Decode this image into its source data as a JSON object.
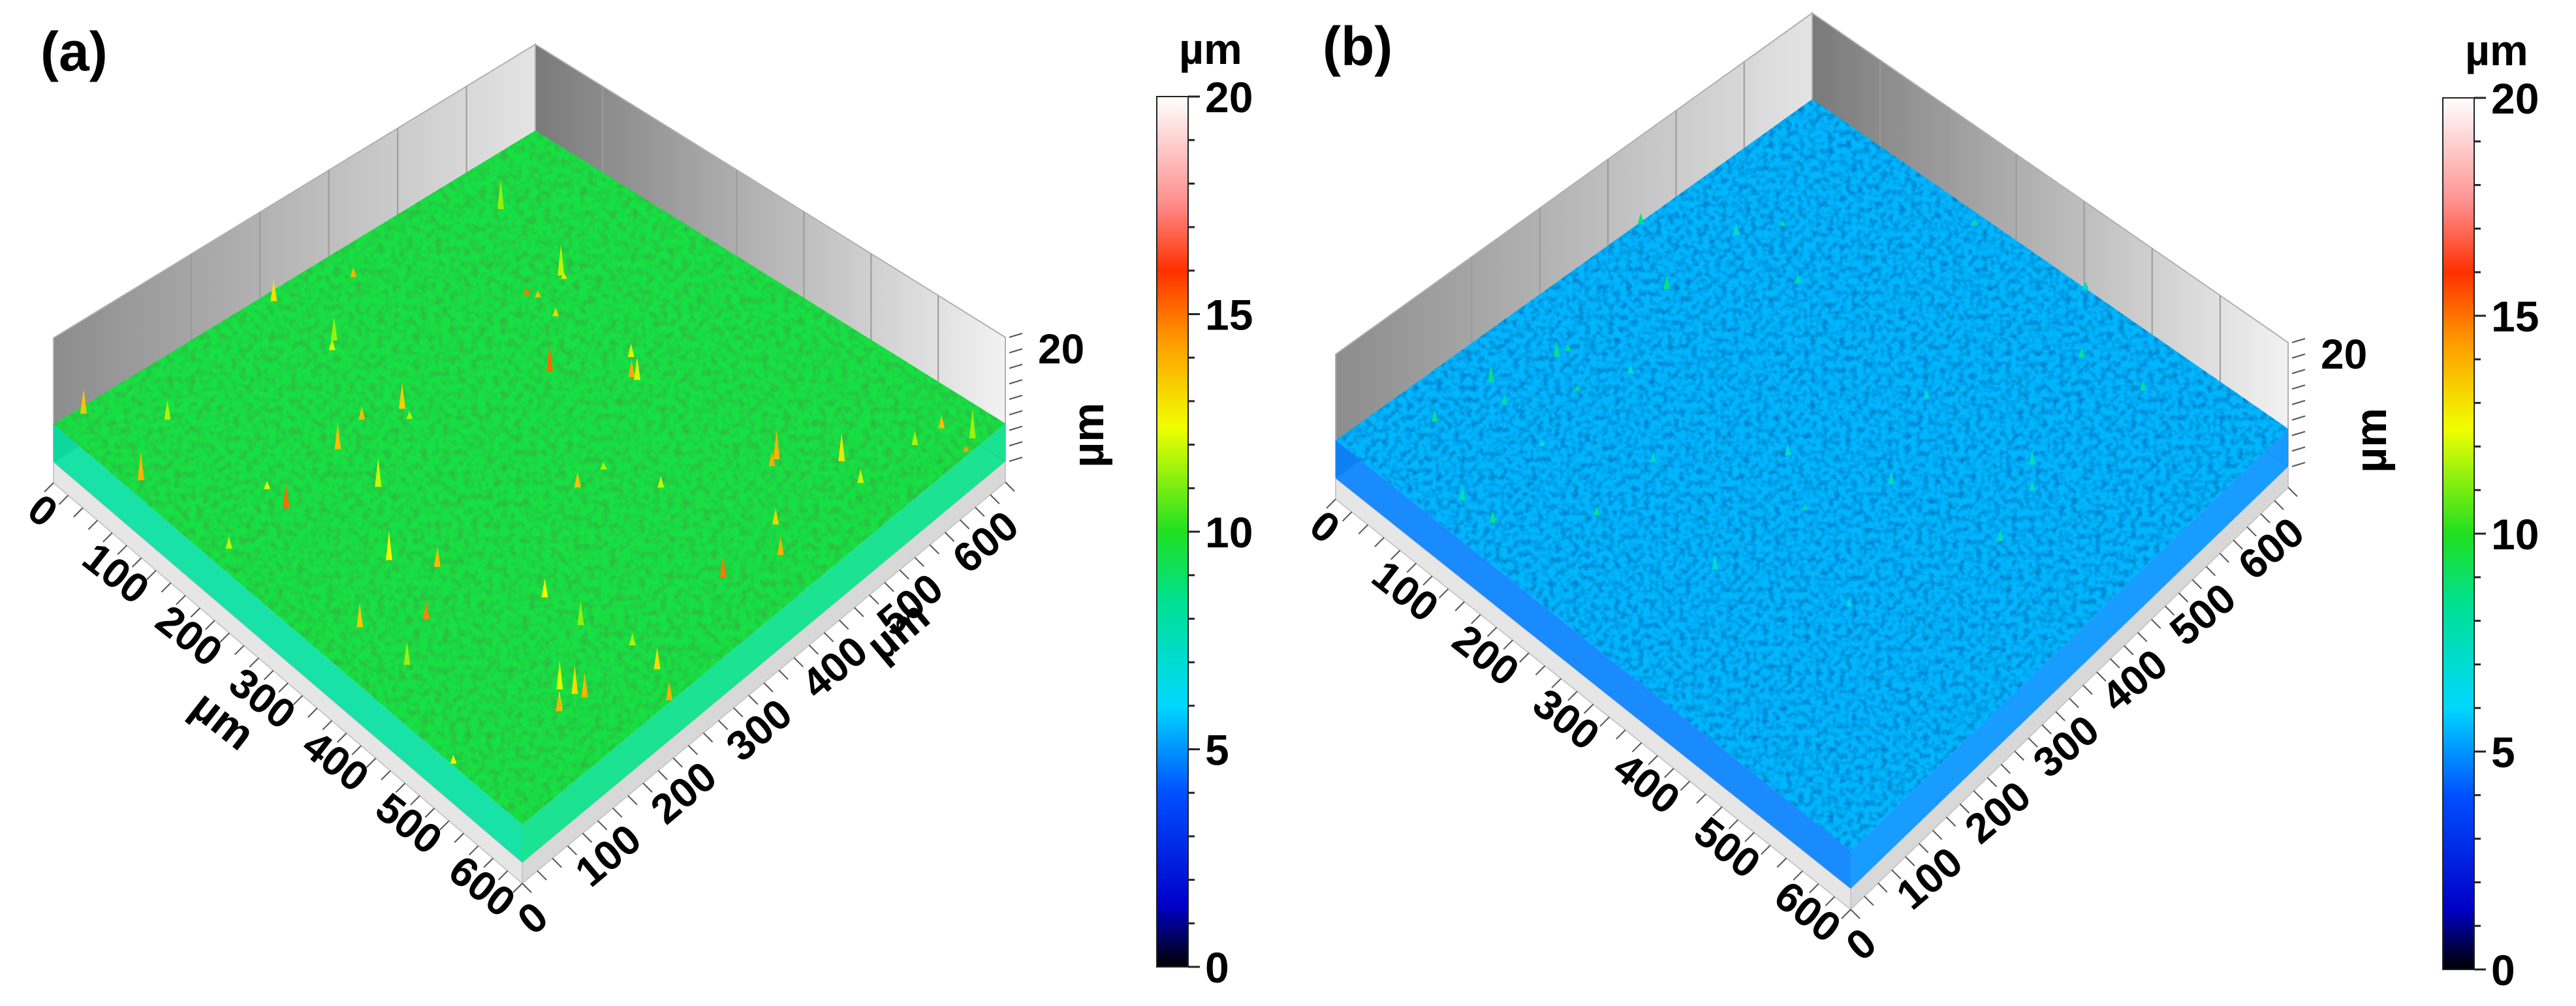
{
  "chart_data": [
    {
      "type": "surface3d",
      "panel_label": "(a)",
      "x_axis": {
        "label": "µm",
        "ticks": [
          "0",
          "100",
          "200",
          "300",
          "400",
          "500",
          "600"
        ],
        "range": [
          0,
          640
        ]
      },
      "y_axis": {
        "label": "µm",
        "ticks": [
          "0",
          "100",
          "200",
          "300",
          "400",
          "500",
          "600"
        ],
        "range": [
          0,
          640
        ]
      },
      "z_axis": {
        "label": "µm",
        "ticks": [
          "20"
        ],
        "range": [
          0,
          20
        ]
      },
      "surface": {
        "mean_height": 9.5,
        "dominant_color": "#3cb43c"
      },
      "colorbar": {
        "unit": "µm",
        "ticks": [
          "0",
          "5",
          "10",
          "15",
          "20"
        ],
        "range": [
          0,
          20
        ]
      }
    },
    {
      "type": "surface3d",
      "panel_label": "(b)",
      "x_axis": {
        "label": "",
        "ticks": [
          "0",
          "100",
          "200",
          "300",
          "400",
          "500",
          "600"
        ],
        "range": [
          0,
          640
        ]
      },
      "y_axis": {
        "label": "",
        "ticks": [
          "0",
          "100",
          "200",
          "300",
          "400",
          "500",
          "600"
        ],
        "range": [
          0,
          640
        ]
      },
      "z_axis": {
        "label": "µm",
        "ticks": [
          "20"
        ],
        "range": [
          0,
          20
        ]
      },
      "surface": {
        "mean_height": 5.5,
        "dominant_color": "#2a8ab8"
      },
      "colorbar": {
        "unit": "µm",
        "ticks": [
          "0",
          "5",
          "10",
          "15",
          "20"
        ],
        "range": [
          0,
          20
        ]
      }
    }
  ]
}
